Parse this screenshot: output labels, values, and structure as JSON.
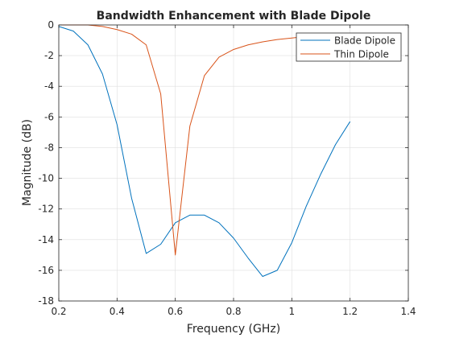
{
  "chart_data": {
    "type": "line",
    "title": "Bandwidth Enhancement with Blade Dipole",
    "xlabel": "Frequency (GHz)",
    "ylabel": "Magnitude (dB)",
    "xlim": [
      0.2,
      1.4
    ],
    "ylim": [
      -18,
      0
    ],
    "xticks": [
      0.2,
      0.4,
      0.6,
      0.8,
      1,
      1.2,
      1.4
    ],
    "xtick_labels": [
      "0.2",
      "0.4",
      "0.6",
      "0.8",
      "1",
      "1.2",
      "1.4"
    ],
    "yticks": [
      0,
      -2,
      -4,
      -6,
      -8,
      -10,
      -12,
      -14,
      -16,
      -18
    ],
    "ytick_labels": [
      "0",
      "-2",
      "-4",
      "-6",
      "-8",
      "-10",
      "-12",
      "-14",
      "-16",
      "-18"
    ],
    "grid": true,
    "legend_position": "top-right",
    "series": [
      {
        "name": "Blade Dipole",
        "color": "#0072BD",
        "x": [
          0.2,
          0.25,
          0.3,
          0.35,
          0.4,
          0.45,
          0.5,
          0.55,
          0.6,
          0.65,
          0.7,
          0.75,
          0.8,
          0.85,
          0.9,
          0.95,
          1.0,
          1.05,
          1.1,
          1.15,
          1.2
        ],
        "y": [
          -0.1,
          -0.4,
          -1.3,
          -3.2,
          -6.5,
          -11.3,
          -14.9,
          -14.3,
          -12.9,
          -12.4,
          -12.4,
          -12.9,
          -13.9,
          -15.2,
          -16.4,
          -16.0,
          -14.2,
          -11.8,
          -9.7,
          -7.8,
          -6.3
        ]
      },
      {
        "name": "Thin Dipole",
        "color": "#D95319",
        "x": [
          0.2,
          0.25,
          0.3,
          0.35,
          0.4,
          0.45,
          0.5,
          0.55,
          0.6,
          0.65,
          0.7,
          0.75,
          0.8,
          0.85,
          0.9,
          0.95,
          1.0,
          1.05,
          1.1,
          1.15,
          1.2
        ],
        "y": [
          0.0,
          0.0,
          0.0,
          -0.1,
          -0.3,
          -0.6,
          -1.3,
          -4.5,
          -15.0,
          -6.6,
          -3.3,
          -2.1,
          -1.6,
          -1.3,
          -1.1,
          -0.95,
          -0.85,
          -0.75,
          -0.7,
          -0.65,
          -0.6
        ]
      }
    ]
  }
}
